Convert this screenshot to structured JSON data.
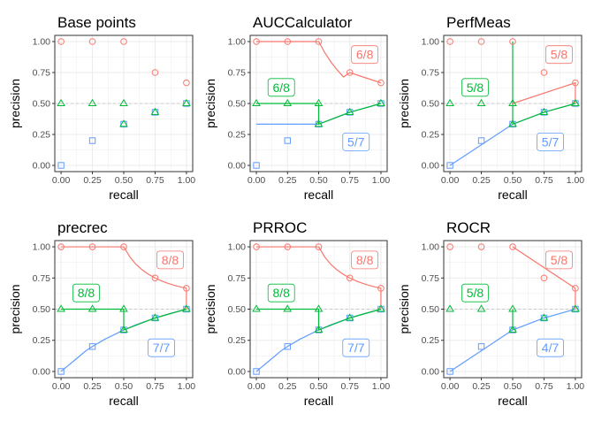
{
  "figure": {
    "colors": {
      "red": "#F8766D",
      "green": "#00BA38",
      "blue": "#619CFF",
      "panel_border": "#333333",
      "grid": "#EBEBEB",
      "text": "#000000",
      "tick_text": "#4D4D4D",
      "ref_line": "#C8C8C8"
    }
  },
  "chart_data": [
    {
      "type": "scatter",
      "title": "Base points",
      "xlabel": "recall",
      "ylabel": "precision",
      "xlim": [
        0,
        1
      ],
      "ylim": [
        0,
        1
      ],
      "x_ticks": [
        "0.00",
        "0.25",
        "0.50",
        "0.75",
        "1.00"
      ],
      "y_ticks": [
        "0.00",
        "0.25",
        "0.50",
        "0.75",
        "1.00"
      ],
      "grid": true,
      "reference_line_y": 0.5,
      "points": {
        "red_circle": [
          [
            0,
            1
          ],
          [
            0.25,
            1
          ],
          [
            0.5,
            1
          ],
          [
            0.75,
            0.75
          ],
          [
            1,
            0.667
          ]
        ],
        "green_triangle": [
          [
            0,
            0.5
          ],
          [
            0.25,
            0.5
          ],
          [
            0.5,
            0.5
          ],
          [
            0.5,
            0.333
          ],
          [
            0.75,
            0.429
          ],
          [
            1,
            0.5
          ]
        ],
        "blue_square": [
          [
            0,
            0
          ],
          [
            0.25,
            0.2
          ],
          [
            0.5,
            0.333
          ],
          [
            0.75,
            0.429
          ],
          [
            1,
            0.5
          ]
        ]
      },
      "curves": {
        "red": [],
        "green": [],
        "blue": []
      },
      "labels": []
    },
    {
      "type": "line",
      "title": "AUCCalculator",
      "xlabel": "recall",
      "ylabel": "precision",
      "xlim": [
        0,
        1
      ],
      "ylim": [
        0,
        1
      ],
      "x_ticks": [
        "0.00",
        "0.25",
        "0.50",
        "0.75",
        "1.00"
      ],
      "y_ticks": [
        "0.00",
        "0.25",
        "0.50",
        "0.75",
        "1.00"
      ],
      "grid": true,
      "reference_line_y": 0.5,
      "points": {
        "red_circle": [
          [
            0,
            1
          ],
          [
            0.25,
            1
          ],
          [
            0.5,
            1
          ],
          [
            0.75,
            0.75
          ],
          [
            1,
            0.667
          ]
        ],
        "green_triangle": [
          [
            0,
            0.5
          ],
          [
            0.25,
            0.5
          ],
          [
            0.5,
            0.5
          ],
          [
            0.5,
            0.333
          ],
          [
            0.75,
            0.429
          ],
          [
            1,
            0.5
          ]
        ],
        "blue_square": [
          [
            0,
            0
          ],
          [
            0.25,
            0.2
          ],
          [
            0.5,
            0.333
          ],
          [
            0.75,
            0.429
          ],
          [
            1,
            0.5
          ]
        ]
      },
      "curves": {
        "red": [
          [
            0,
            1
          ],
          [
            0.5,
            1
          ],
          [
            0.55,
            0.909
          ],
          [
            0.6,
            0.833
          ],
          [
            0.65,
            0.769
          ],
          [
            0.7,
            0.714
          ],
          [
            0.75,
            0.75
          ],
          [
            0.875,
            0.708
          ],
          [
            1,
            0.667
          ]
        ],
        "green": [
          [
            0,
            0.5
          ],
          [
            0.5,
            0.5
          ],
          [
            0.5,
            0.333
          ],
          [
            0.75,
            0.429
          ],
          [
            1,
            0.5
          ]
        ],
        "blue": [
          [
            0,
            0.333
          ],
          [
            0.5,
            0.333
          ],
          [
            0.75,
            0.429
          ],
          [
            1,
            0.5
          ]
        ]
      },
      "labels": [
        {
          "series": "red",
          "text": "6/8",
          "x": 0.87,
          "y": 0.895
        },
        {
          "series": "green",
          "text": "6/8",
          "x": 0.2,
          "y": 0.63
        },
        {
          "series": "blue",
          "text": "5/7",
          "x": 0.8,
          "y": 0.19
        }
      ]
    },
    {
      "type": "line",
      "title": "PerfMeas",
      "xlabel": "recall",
      "ylabel": "precision",
      "xlim": [
        0,
        1
      ],
      "ylim": [
        0,
        1
      ],
      "x_ticks": [
        "0.00",
        "0.25",
        "0.50",
        "0.75",
        "1.00"
      ],
      "y_ticks": [
        "0.00",
        "0.25",
        "0.50",
        "0.75",
        "1.00"
      ],
      "grid": true,
      "reference_line_y": 0.5,
      "points": {
        "red_circle": [
          [
            0,
            1
          ],
          [
            0.25,
            1
          ],
          [
            0.5,
            1
          ],
          [
            0.75,
            0.75
          ],
          [
            1,
            0.667
          ]
        ],
        "green_triangle": [
          [
            0,
            0.5
          ],
          [
            0.25,
            0.5
          ],
          [
            0.5,
            0.5
          ],
          [
            0.5,
            0.333
          ],
          [
            0.75,
            0.429
          ],
          [
            1,
            0.5
          ]
        ],
        "blue_square": [
          [
            0,
            0
          ],
          [
            0.25,
            0.2
          ],
          [
            0.5,
            0.333
          ],
          [
            0.75,
            0.429
          ],
          [
            1,
            0.5
          ]
        ]
      },
      "curves": {
        "red": [
          [
            0.5,
            0.5
          ],
          [
            1,
            0.667
          ],
          [
            1,
            0.5
          ]
        ],
        "green": [
          [
            0.5,
            1
          ],
          [
            0.5,
            0.333
          ],
          [
            0.75,
            0.429
          ],
          [
            1,
            0.5
          ]
        ],
        "blue": [
          [
            0,
            0
          ],
          [
            0.5,
            0.333
          ],
          [
            0.75,
            0.429
          ],
          [
            1,
            0.5
          ]
        ]
      },
      "labels": [
        {
          "series": "red",
          "text": "5/8",
          "x": 0.87,
          "y": 0.895
        },
        {
          "series": "green",
          "text": "5/8",
          "x": 0.2,
          "y": 0.63
        },
        {
          "series": "blue",
          "text": "5/7",
          "x": 0.8,
          "y": 0.19
        }
      ]
    },
    {
      "type": "line",
      "title": "precrec",
      "xlabel": "recall",
      "ylabel": "precision",
      "xlim": [
        0,
        1
      ],
      "ylim": [
        0,
        1
      ],
      "x_ticks": [
        "0.00",
        "0.25",
        "0.50",
        "0.75",
        "1.00"
      ],
      "y_ticks": [
        "0.00",
        "0.25",
        "0.50",
        "0.75",
        "1.00"
      ],
      "grid": true,
      "reference_line_y": 0.5,
      "points": {
        "red_circle": [
          [
            0,
            1
          ],
          [
            0.25,
            1
          ],
          [
            0.5,
            1
          ],
          [
            0.75,
            0.75
          ],
          [
            1,
            0.667
          ]
        ],
        "green_triangle": [
          [
            0,
            0.5
          ],
          [
            0.25,
            0.5
          ],
          [
            0.5,
            0.5
          ],
          [
            0.5,
            0.333
          ],
          [
            0.75,
            0.429
          ],
          [
            1,
            0.5
          ]
        ],
        "blue_square": [
          [
            0,
            0
          ],
          [
            0.25,
            0.2
          ],
          [
            0.5,
            0.333
          ],
          [
            0.75,
            0.429
          ],
          [
            1,
            0.5
          ]
        ]
      },
      "curves": {
        "red": [
          [
            0,
            1
          ],
          [
            0.5,
            1
          ],
          [
            0.55,
            0.917
          ],
          [
            0.6,
            0.857
          ],
          [
            0.65,
            0.813
          ],
          [
            0.7,
            0.778
          ],
          [
            0.75,
            0.75
          ],
          [
            0.8,
            0.727
          ],
          [
            0.85,
            0.708
          ],
          [
            0.9,
            0.692
          ],
          [
            0.95,
            0.679
          ],
          [
            1,
            0.667
          ],
          [
            1,
            0.5
          ]
        ],
        "green": [
          [
            0,
            0.5
          ],
          [
            0.5,
            0.5
          ],
          [
            0.5,
            0.333
          ],
          [
            0.75,
            0.429
          ],
          [
            1,
            0.5
          ]
        ],
        "blue": [
          [
            0,
            0
          ],
          [
            0.1,
            0.083
          ],
          [
            0.2,
            0.167
          ],
          [
            0.25,
            0.2
          ],
          [
            0.35,
            0.259
          ],
          [
            0.5,
            0.333
          ],
          [
            0.6,
            0.375
          ],
          [
            0.75,
            0.429
          ],
          [
            0.875,
            0.467
          ],
          [
            1,
            0.5
          ]
        ]
      },
      "labels": [
        {
          "series": "red",
          "text": "8/8",
          "x": 0.87,
          "y": 0.895
        },
        {
          "series": "green",
          "text": "8/8",
          "x": 0.2,
          "y": 0.63
        },
        {
          "series": "blue",
          "text": "7/7",
          "x": 0.8,
          "y": 0.19
        }
      ]
    },
    {
      "type": "line",
      "title": "PRROC",
      "xlabel": "recall",
      "ylabel": "precision",
      "xlim": [
        0,
        1
      ],
      "ylim": [
        0,
        1
      ],
      "x_ticks": [
        "0.00",
        "0.25",
        "0.50",
        "0.75",
        "1.00"
      ],
      "y_ticks": [
        "0.00",
        "0.25",
        "0.50",
        "0.75",
        "1.00"
      ],
      "grid": true,
      "reference_line_y": 0.5,
      "points": {
        "red_circle": [
          [
            0,
            1
          ],
          [
            0.25,
            1
          ],
          [
            0.5,
            1
          ],
          [
            0.75,
            0.75
          ],
          [
            1,
            0.667
          ]
        ],
        "green_triangle": [
          [
            0,
            0.5
          ],
          [
            0.25,
            0.5
          ],
          [
            0.5,
            0.5
          ],
          [
            0.5,
            0.333
          ],
          [
            0.75,
            0.429
          ],
          [
            1,
            0.5
          ]
        ],
        "blue_square": [
          [
            0,
            0
          ],
          [
            0.25,
            0.2
          ],
          [
            0.5,
            0.333
          ],
          [
            0.75,
            0.429
          ],
          [
            1,
            0.5
          ]
        ]
      },
      "curves": {
        "red": [
          [
            0,
            1
          ],
          [
            0.5,
            1
          ],
          [
            0.55,
            0.917
          ],
          [
            0.6,
            0.857
          ],
          [
            0.65,
            0.813
          ],
          [
            0.7,
            0.778
          ],
          [
            0.75,
            0.75
          ],
          [
            0.8,
            0.727
          ],
          [
            0.85,
            0.708
          ],
          [
            0.9,
            0.692
          ],
          [
            0.95,
            0.679
          ],
          [
            1,
            0.667
          ],
          [
            1,
            0.5
          ]
        ],
        "green": [
          [
            0,
            0.5
          ],
          [
            0.5,
            0.5
          ],
          [
            0.5,
            0.333
          ],
          [
            0.75,
            0.429
          ],
          [
            1,
            0.5
          ]
        ],
        "blue": [
          [
            0,
            0
          ],
          [
            0.1,
            0.083
          ],
          [
            0.2,
            0.167
          ],
          [
            0.25,
            0.2
          ],
          [
            0.35,
            0.259
          ],
          [
            0.5,
            0.333
          ],
          [
            0.6,
            0.375
          ],
          [
            0.75,
            0.429
          ],
          [
            0.875,
            0.467
          ],
          [
            1,
            0.5
          ]
        ]
      },
      "labels": [
        {
          "series": "red",
          "text": "8/8",
          "x": 0.87,
          "y": 0.895
        },
        {
          "series": "green",
          "text": "8/8",
          "x": 0.2,
          "y": 0.63
        },
        {
          "series": "blue",
          "text": "7/7",
          "x": 0.8,
          "y": 0.19
        }
      ]
    },
    {
      "type": "line",
      "title": "ROCR",
      "xlabel": "recall",
      "ylabel": "precision",
      "xlim": [
        0,
        1
      ],
      "ylim": [
        0,
        1
      ],
      "x_ticks": [
        "0.00",
        "0.25",
        "0.50",
        "0.75",
        "1.00"
      ],
      "y_ticks": [
        "0.00",
        "0.25",
        "0.50",
        "0.75",
        "1.00"
      ],
      "grid": true,
      "reference_line_y": 0.5,
      "points": {
        "red_circle": [
          [
            0,
            1
          ],
          [
            0.25,
            1
          ],
          [
            0.5,
            1
          ],
          [
            0.75,
            0.75
          ],
          [
            1,
            0.667
          ]
        ],
        "green_triangle": [
          [
            0,
            0.5
          ],
          [
            0.25,
            0.5
          ],
          [
            0.5,
            0.5
          ],
          [
            0.5,
            0.333
          ],
          [
            0.75,
            0.429
          ],
          [
            1,
            0.5
          ]
        ],
        "blue_square": [
          [
            0,
            0
          ],
          [
            0.25,
            0.2
          ],
          [
            0.5,
            0.333
          ],
          [
            0.75,
            0.429
          ],
          [
            1,
            0.5
          ]
        ]
      },
      "curves": {
        "red": [
          [
            0.5,
            1
          ],
          [
            1,
            0.667
          ],
          [
            1,
            0.5
          ]
        ],
        "green": [
          [
            0.5,
            0.5
          ],
          [
            0.5,
            0.333
          ]
        ],
        "blue": [
          [
            0,
            0
          ],
          [
            0.5,
            0.333
          ],
          [
            0.75,
            0.429
          ],
          [
            1,
            0.5
          ]
        ]
      },
      "labels": [
        {
          "series": "red",
          "text": "5/8",
          "x": 0.87,
          "y": 0.895
        },
        {
          "series": "green",
          "text": "5/8",
          "x": 0.2,
          "y": 0.63
        },
        {
          "series": "blue",
          "text": "4/7",
          "x": 0.8,
          "y": 0.19
        }
      ]
    }
  ]
}
